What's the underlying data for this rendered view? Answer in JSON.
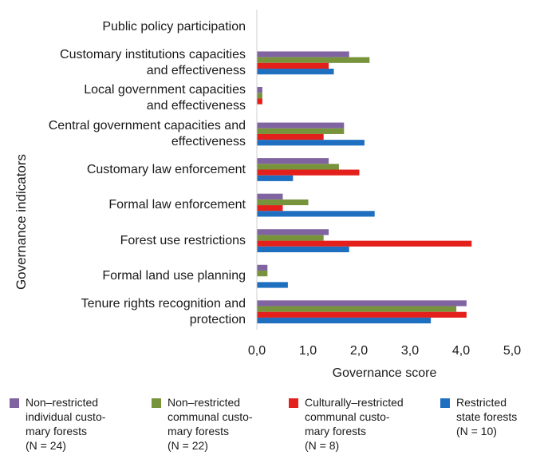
{
  "chart_data": {
    "type": "bar",
    "orientation": "horizontal",
    "ylabel": "Governance indicators",
    "xlabel": "Governance score",
    "xlim": [
      0,
      5
    ],
    "x_ticks": [
      "0,0",
      "1,0",
      "2,0",
      "3,0",
      "4,0",
      "5,0"
    ],
    "categories": [
      "Public policy participation",
      "Customary institutions capacities\nand effectiveness",
      "Local government capacities\nand effectiveness",
      "Central government capacities and\neffectiveness",
      "Customary law enforcement",
      "Formal law enforcement",
      "Forest use restrictions",
      "Formal land use planning",
      "Tenure rights recognition and\nprotection"
    ],
    "series": [
      {
        "name": "Non–restricted\nindividual custo-\nmary forests\n(N = 24)",
        "color": "#8064a2",
        "values": [
          0,
          1.8,
          0.1,
          1.7,
          1.4,
          0.5,
          1.4,
          0.2,
          4.1
        ]
      },
      {
        "name": "Non–restricted\ncommunal custo-\nmary forests\n(N = 22)",
        "color": "#77933c",
        "values": [
          0,
          2.2,
          0.1,
          1.7,
          1.6,
          1.0,
          1.3,
          0.2,
          3.9
        ]
      },
      {
        "name": "Culturally–restricted\ncommunal custo-\nmary forests\n(N = 8)",
        "color": "#e3201b",
        "values": [
          0,
          1.4,
          0.1,
          1.3,
          2.0,
          0.5,
          4.2,
          0,
          4.1
        ]
      },
      {
        "name": "Restricted\nstate forests\n(N = 10)",
        "color": "#1f6fc1",
        "values": [
          0,
          1.5,
          0,
          2.1,
          0.7,
          2.3,
          1.8,
          0.6,
          3.4
        ]
      }
    ],
    "grid": false,
    "legend_position": "bottom"
  }
}
